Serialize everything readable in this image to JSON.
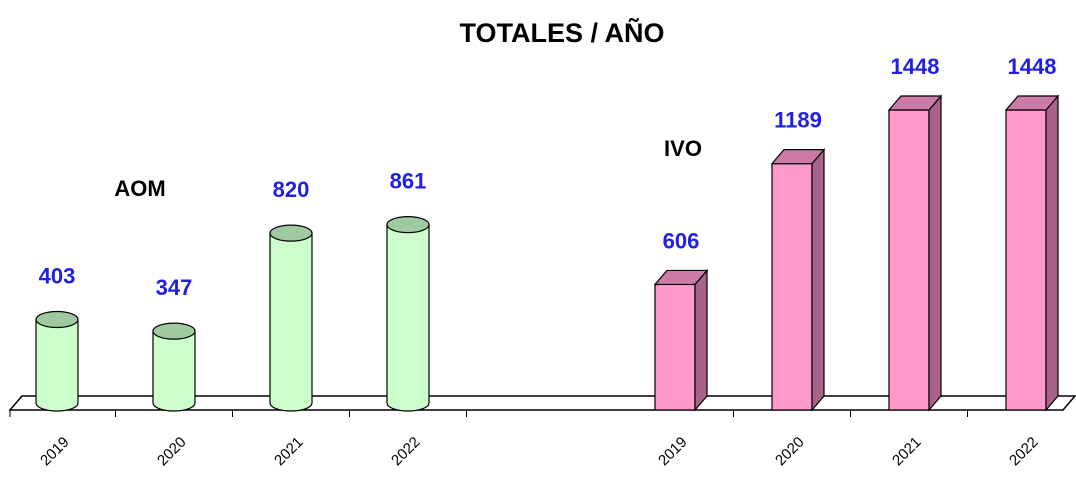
{
  "chart_data": {
    "type": "bar",
    "title": "TOTALES / AÑO",
    "categories": [
      "2019",
      "2020",
      "2021",
      "2022",
      null,
      "2019",
      "2020",
      "2021",
      "2022"
    ],
    "series": [
      {
        "name": "AOM",
        "color": "#ccffcc",
        "shape": "cylinder",
        "values": [
          403,
          347,
          820,
          861,
          null,
          null,
          null,
          null,
          null
        ]
      },
      {
        "name": "IVO",
        "color": "#ff99cc",
        "shape": "box",
        "values": [
          null,
          null,
          null,
          null,
          null,
          606,
          1189,
          1448,
          1448
        ]
      }
    ]
  }
}
